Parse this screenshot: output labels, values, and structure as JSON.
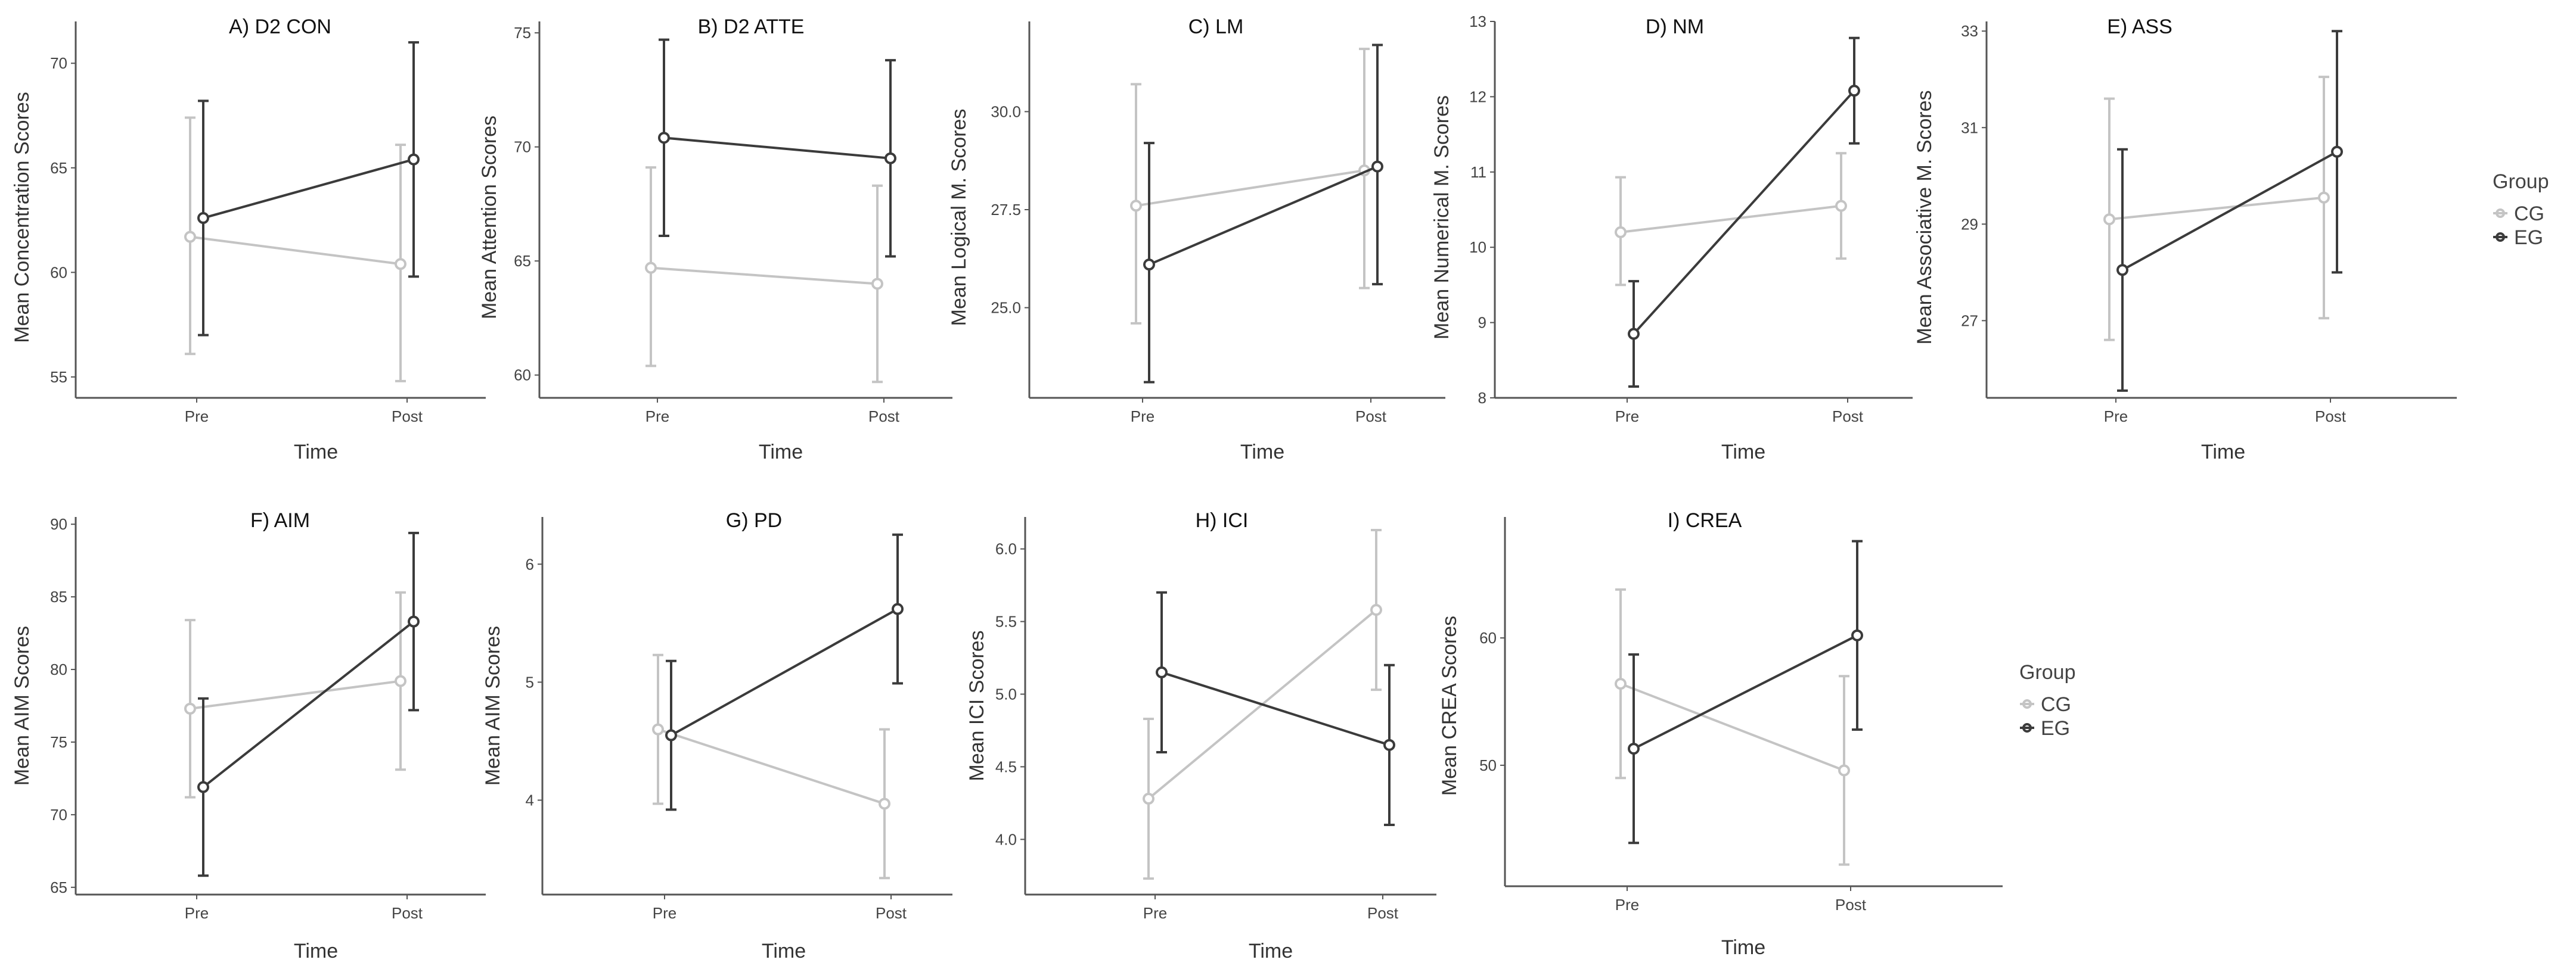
{
  "chart_data": [
    {
      "type": "line",
      "title": "A) D2 CON",
      "xlabel": "Time",
      "ylabel": "Mean Concentration Scores",
      "categories": [
        "Pre",
        "Post"
      ],
      "ylim": [
        54,
        72
      ],
      "yticks": [
        "55",
        "60",
        "65",
        "70"
      ],
      "series": [
        {
          "name": "CG",
          "values": [
            61.7,
            60.4
          ],
          "lower": [
            56.1,
            54.8
          ],
          "upper": [
            67.4,
            66.1
          ]
        },
        {
          "name": "EG",
          "values": [
            62.6,
            65.4
          ],
          "lower": [
            57.0,
            59.8
          ],
          "upper": [
            68.2,
            71.0
          ]
        }
      ]
    },
    {
      "type": "line",
      "title": "B) D2 ATTE",
      "xlabel": "Time",
      "ylabel": "Mean Attention Scores",
      "categories": [
        "Pre",
        "Post"
      ],
      "ylim": [
        59,
        75.5
      ],
      "yticks": [
        "60",
        "65",
        "70",
        "75"
      ],
      "series": [
        {
          "name": "CG",
          "values": [
            64.7,
            64.0
          ],
          "lower": [
            60.4,
            59.7
          ],
          "upper": [
            69.1,
            68.3
          ]
        },
        {
          "name": "EG",
          "values": [
            70.4,
            69.5
          ],
          "lower": [
            66.1,
            65.2
          ],
          "upper": [
            74.7,
            73.8
          ]
        }
      ]
    },
    {
      "type": "line",
      "title": "C) LM",
      "xlabel": "Time",
      "ylabel": "Mean Logical M. Scores",
      "categories": [
        "Pre",
        "Post"
      ],
      "ylim": [
        22.7,
        32.3
      ],
      "yticks": [
        "25.0",
        "27.5",
        "30.0"
      ],
      "series": [
        {
          "name": "CG",
          "values": [
            27.6,
            28.5
          ],
          "lower": [
            24.6,
            25.5
          ],
          "upper": [
            30.7,
            31.6
          ]
        },
        {
          "name": "EG",
          "values": [
            26.1,
            28.6
          ],
          "lower": [
            23.1,
            25.6
          ],
          "upper": [
            29.2,
            31.7
          ]
        }
      ]
    },
    {
      "type": "line",
      "title": "D) NM",
      "xlabel": "Time",
      "ylabel": "Mean Numerical M. Scores",
      "categories": [
        "Pre",
        "Post"
      ],
      "ylim": [
        8,
        13
      ],
      "yticks": [
        "8",
        "9",
        "10",
        "11",
        "12",
        "13"
      ],
      "series": [
        {
          "name": "CG",
          "values": [
            10.2,
            10.55
          ],
          "lower": [
            9.5,
            9.85
          ],
          "upper": [
            10.93,
            11.25
          ]
        },
        {
          "name": "EG",
          "values": [
            8.85,
            12.08
          ],
          "lower": [
            8.15,
            11.38
          ],
          "upper": [
            9.55,
            12.78
          ]
        }
      ]
    },
    {
      "type": "line",
      "title": "E) ASS",
      "xlabel": "Time",
      "ylabel": "Mean Associative M. Scores",
      "categories": [
        "Pre",
        "Post"
      ],
      "ylim": [
        25.4,
        33.2
      ],
      "yticks": [
        "27",
        "29",
        "31",
        "33"
      ],
      "series": [
        {
          "name": "CG",
          "values": [
            29.1,
            29.55
          ],
          "lower": [
            26.6,
            27.05
          ],
          "upper": [
            31.6,
            32.05
          ]
        },
        {
          "name": "EG",
          "values": [
            28.05,
            30.5
          ],
          "lower": [
            25.55,
            28.0
          ],
          "upper": [
            30.55,
            33.0
          ]
        }
      ]
    },
    {
      "type": "line",
      "title": "F) AIM",
      "xlabel": "Time",
      "ylabel": "Mean AIM Scores",
      "categories": [
        "Pre",
        "Post"
      ],
      "ylim": [
        64.5,
        90.5
      ],
      "yticks": [
        "65",
        "70",
        "75",
        "80",
        "85",
        "90"
      ],
      "series": [
        {
          "name": "CG",
          "values": [
            77.3,
            79.2
          ],
          "lower": [
            71.2,
            73.1
          ],
          "upper": [
            83.4,
            85.3
          ]
        },
        {
          "name": "EG",
          "values": [
            71.9,
            83.3
          ],
          "lower": [
            65.8,
            77.2
          ],
          "upper": [
            78.0,
            89.4
          ]
        }
      ]
    },
    {
      "type": "line",
      "title": "G) PD",
      "xlabel": "Time",
      "ylabel": "Mean AIM Scores",
      "categories": [
        "Pre",
        "Post"
      ],
      "ylim": [
        3.2,
        6.4
      ],
      "yticks": [
        "4",
        "5",
        "6"
      ],
      "series": [
        {
          "name": "CG",
          "values": [
            4.6,
            3.97
          ],
          "lower": [
            3.97,
            3.34
          ],
          "upper": [
            5.23,
            4.6
          ]
        },
        {
          "name": "EG",
          "values": [
            4.55,
            5.62
          ],
          "lower": [
            3.92,
            4.99
          ],
          "upper": [
            5.18,
            6.25
          ]
        }
      ]
    },
    {
      "type": "line",
      "title": "H) ICI",
      "xlabel": "Time",
      "ylabel": "Mean ICI Scores",
      "categories": [
        "Pre",
        "Post"
      ],
      "ylim": [
        3.62,
        6.22
      ],
      "yticks": [
        "4.0",
        "4.5",
        "5.0",
        "5.5",
        "6.0"
      ],
      "series": [
        {
          "name": "CG",
          "values": [
            4.28,
            5.58
          ],
          "lower": [
            3.73,
            5.03
          ],
          "upper": [
            4.83,
            6.13
          ]
        },
        {
          "name": "EG",
          "values": [
            5.15,
            4.65
          ],
          "lower": [
            4.6,
            4.1
          ],
          "upper": [
            5.7,
            5.2
          ]
        }
      ]
    },
    {
      "type": "line",
      "title": "I) CREA",
      "xlabel": "Time",
      "ylabel": "Mean CREA Scores",
      "categories": [
        "Pre",
        "Post"
      ],
      "ylim": [
        40.5,
        69.5
      ],
      "yticks": [
        "50",
        "60"
      ],
      "series": [
        {
          "name": "CG",
          "values": [
            56.4,
            49.6
          ],
          "lower": [
            49.0,
            42.2
          ],
          "upper": [
            63.8,
            57.0
          ]
        },
        {
          "name": "EG",
          "values": [
            51.3,
            60.2
          ],
          "lower": [
            43.9,
            52.8
          ],
          "upper": [
            58.7,
            67.6
          ]
        }
      ]
    }
  ],
  "legends": [
    {
      "title": "Group",
      "items": [
        "CG",
        "EG"
      ]
    },
    {
      "title": "Group",
      "items": [
        "CG",
        "EG"
      ]
    }
  ],
  "colors": {
    "CG": "#c4c4c4",
    "EG": "#3b3b3b",
    "axis": "#555555"
  }
}
